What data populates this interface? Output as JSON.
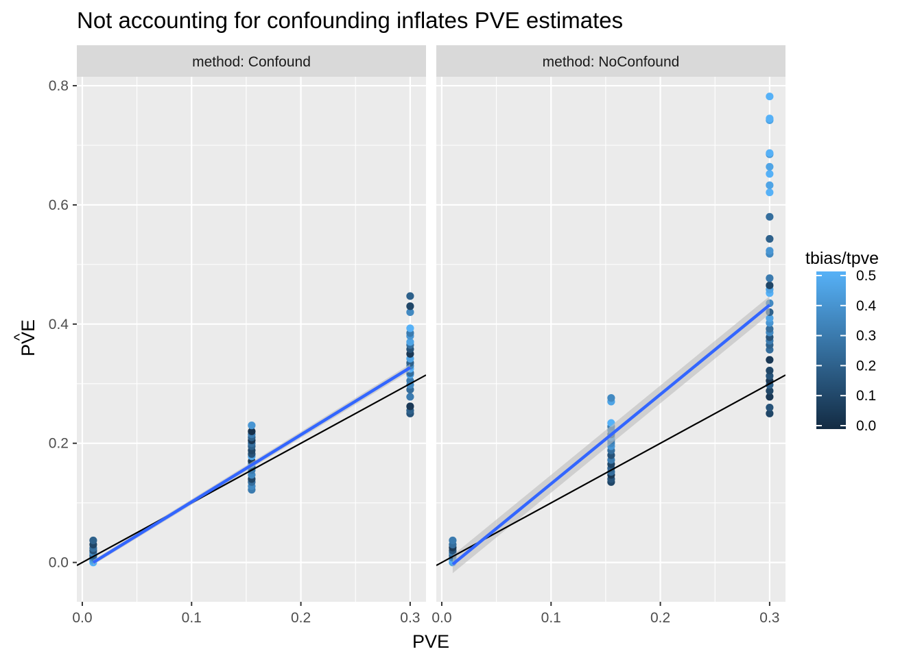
{
  "title": "Not accounting for confounding inflates PVE estimates",
  "xlabel": "PVE",
  "ylabel_main": "PVE",
  "ylabel_hat": "^",
  "legend": {
    "title": "tbias/tpve",
    "ticks": [
      "0.0",
      "0.1",
      "0.2",
      "0.3",
      "0.4",
      "0.5"
    ],
    "tick_values": [
      0,
      0.1,
      0.2,
      0.3,
      0.4,
      0.5
    ],
    "color_low": "#132b43",
    "color_high": "#56b1f7"
  },
  "colors": {
    "panel_bg": "#ebebeb",
    "strip_bg": "#d9d9d9",
    "grid": "#ffffff",
    "fit_line": "#3366ff",
    "ribbon": "#bdbdbd",
    "identity_line": "#000000"
  },
  "chart_data": {
    "type": "scatter",
    "x_ticks": [
      "0.0",
      "0.1",
      "0.2",
      "0.3"
    ],
    "x_tick_values": [
      0,
      0.1,
      0.2,
      0.3
    ],
    "y_ticks": [
      "0.0",
      "0.2",
      "0.4",
      "0.6",
      "0.8"
    ],
    "y_tick_values": [
      0,
      0.2,
      0.4,
      0.6,
      0.8
    ],
    "xlim": [
      -0.005,
      0.3145
    ],
    "ylim": [
      -0.066,
      0.815
    ],
    "reference_line": {
      "slope": 1,
      "intercept": 0
    },
    "panels": [
      {
        "strip": "method: Confound",
        "fit": {
          "x": [
            0.01,
            0.3
          ],
          "y": [
            0.0,
            0.327
          ],
          "se": [
            0.004,
            0.006
          ]
        },
        "points": [
          [
            0.01,
            0.0,
            0.5
          ],
          [
            0.01,
            0.003,
            0.45
          ],
          [
            0.01,
            0.006,
            0.4
          ],
          [
            0.01,
            0.009,
            0.3
          ],
          [
            0.01,
            0.012,
            0.2
          ],
          [
            0.01,
            0.016,
            0.35
          ],
          [
            0.01,
            0.02,
            0.15
          ],
          [
            0.01,
            0.024,
            0.25
          ],
          [
            0.01,
            0.03,
            0.1
          ],
          [
            0.01,
            0.037,
            0.2
          ],
          [
            0.155,
            0.122,
            0.3
          ],
          [
            0.155,
            0.128,
            0.35
          ],
          [
            0.155,
            0.135,
            0.25
          ],
          [
            0.155,
            0.14,
            0.1
          ],
          [
            0.155,
            0.147,
            0.35
          ],
          [
            0.155,
            0.155,
            0.3
          ],
          [
            0.155,
            0.16,
            0.2
          ],
          [
            0.155,
            0.165,
            0.4
          ],
          [
            0.155,
            0.17,
            0.05
          ],
          [
            0.155,
            0.178,
            0.45
          ],
          [
            0.155,
            0.182,
            0.15
          ],
          [
            0.155,
            0.188,
            0.1
          ],
          [
            0.155,
            0.195,
            0.2
          ],
          [
            0.155,
            0.2,
            0.25
          ],
          [
            0.155,
            0.205,
            0.05
          ],
          [
            0.155,
            0.21,
            0.2
          ],
          [
            0.155,
            0.215,
            0.3
          ],
          [
            0.155,
            0.22,
            0.02
          ],
          [
            0.155,
            0.23,
            0.4
          ],
          [
            0.3,
            0.25,
            0.15
          ],
          [
            0.3,
            0.255,
            0.2
          ],
          [
            0.3,
            0.262,
            0.05
          ],
          [
            0.3,
            0.278,
            0.3
          ],
          [
            0.3,
            0.29,
            0.25
          ],
          [
            0.3,
            0.298,
            0.35
          ],
          [
            0.3,
            0.305,
            0.3
          ],
          [
            0.3,
            0.315,
            0.45
          ],
          [
            0.3,
            0.318,
            0.25
          ],
          [
            0.3,
            0.325,
            0.5
          ],
          [
            0.3,
            0.33,
            0.35
          ],
          [
            0.3,
            0.335,
            0.2
          ],
          [
            0.3,
            0.342,
            0.45
          ],
          [
            0.3,
            0.35,
            0.05
          ],
          [
            0.3,
            0.358,
            0.15
          ],
          [
            0.3,
            0.365,
            0.25
          ],
          [
            0.3,
            0.37,
            0.45
          ],
          [
            0.3,
            0.38,
            0.4
          ],
          [
            0.3,
            0.385,
            0.3
          ],
          [
            0.3,
            0.393,
            0.5
          ],
          [
            0.3,
            0.42,
            0.35
          ],
          [
            0.3,
            0.43,
            0.1
          ],
          [
            0.3,
            0.447,
            0.2
          ]
        ]
      },
      {
        "strip": "method: NoConfound",
        "fit": {
          "x": [
            0.01,
            0.3
          ],
          "y": [
            -0.003,
            0.432
          ],
          "se": [
            0.015,
            0.015
          ]
        },
        "points": [
          [
            0.01,
            0.0,
            0.45
          ],
          [
            0.01,
            0.004,
            0.5
          ],
          [
            0.01,
            0.008,
            0.35
          ],
          [
            0.01,
            0.012,
            0.2
          ],
          [
            0.01,
            0.016,
            0.3
          ],
          [
            0.01,
            0.02,
            0.15
          ],
          [
            0.01,
            0.025,
            0.05
          ],
          [
            0.01,
            0.03,
            0.25
          ],
          [
            0.01,
            0.037,
            0.3
          ],
          [
            0.155,
            0.135,
            0.1
          ],
          [
            0.155,
            0.14,
            0.15
          ],
          [
            0.155,
            0.147,
            0.05
          ],
          [
            0.155,
            0.152,
            0.25
          ],
          [
            0.155,
            0.158,
            0.2
          ],
          [
            0.155,
            0.165,
            0.1
          ],
          [
            0.155,
            0.172,
            0.3
          ],
          [
            0.155,
            0.18,
            0.15
          ],
          [
            0.155,
            0.188,
            0.25
          ],
          [
            0.155,
            0.195,
            0.4
          ],
          [
            0.155,
            0.2,
            0.35
          ],
          [
            0.155,
            0.205,
            0.3
          ],
          [
            0.155,
            0.21,
            0.45
          ],
          [
            0.155,
            0.215,
            0.2
          ],
          [
            0.155,
            0.222,
            0.35
          ],
          [
            0.155,
            0.228,
            0.3
          ],
          [
            0.155,
            0.234,
            0.5
          ],
          [
            0.155,
            0.27,
            0.45
          ],
          [
            0.155,
            0.276,
            0.35
          ],
          [
            0.3,
            0.25,
            0.1
          ],
          [
            0.3,
            0.26,
            0.15
          ],
          [
            0.3,
            0.278,
            0.05
          ],
          [
            0.3,
            0.288,
            0.1
          ],
          [
            0.3,
            0.298,
            0.2
          ],
          [
            0.3,
            0.305,
            0.05
          ],
          [
            0.3,
            0.313,
            0.15
          ],
          [
            0.3,
            0.322,
            0.1
          ],
          [
            0.3,
            0.34,
            0.05
          ],
          [
            0.3,
            0.357,
            0.25
          ],
          [
            0.3,
            0.365,
            0.2
          ],
          [
            0.3,
            0.372,
            0.3
          ],
          [
            0.3,
            0.378,
            0.15
          ],
          [
            0.3,
            0.386,
            0.35
          ],
          [
            0.3,
            0.392,
            0.25
          ],
          [
            0.3,
            0.402,
            0.4
          ],
          [
            0.3,
            0.41,
            0.45
          ],
          [
            0.3,
            0.42,
            0.2
          ],
          [
            0.3,
            0.435,
            0.35
          ],
          [
            0.3,
            0.452,
            0.5
          ],
          [
            0.3,
            0.458,
            0.45
          ],
          [
            0.3,
            0.465,
            0.1
          ],
          [
            0.3,
            0.477,
            0.3
          ],
          [
            0.3,
            0.518,
            0.35
          ],
          [
            0.3,
            0.523,
            0.4
          ],
          [
            0.3,
            0.543,
            0.2
          ],
          [
            0.3,
            0.58,
            0.25
          ],
          [
            0.3,
            0.621,
            0.5
          ],
          [
            0.3,
            0.633,
            0.45
          ],
          [
            0.3,
            0.652,
            0.5
          ],
          [
            0.3,
            0.664,
            0.45
          ],
          [
            0.3,
            0.685,
            0.4
          ],
          [
            0.3,
            0.687,
            0.5
          ],
          [
            0.3,
            0.742,
            0.45
          ],
          [
            0.3,
            0.745,
            0.5
          ],
          [
            0.3,
            0.782,
            0.5
          ]
        ]
      }
    ]
  }
}
